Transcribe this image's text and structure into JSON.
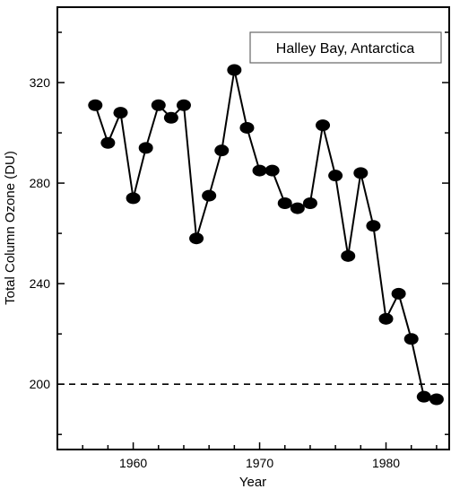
{
  "chart_data": {
    "type": "line",
    "title": "",
    "xlabel": "Year",
    "ylabel": "Total Column Ozone (DU)",
    "xlim": [
      1954,
      1985
    ],
    "ylim": [
      174,
      350
    ],
    "xticks": [
      1960,
      1970,
      1980
    ],
    "yticks": [
      200,
      240,
      280,
      320
    ],
    "annotation": "Halley Bay, Antarctica",
    "reference_line": {
      "y": 200,
      "style": "dashed"
    },
    "grid": false,
    "series": [
      {
        "x": [
          1957,
          1958,
          1959,
          1960,
          1961,
          1962,
          1963,
          1964,
          1965,
          1966,
          1967,
          1968,
          1969,
          1970,
          1971,
          1972,
          1973,
          1974,
          1975,
          1976,
          1977,
          1978,
          1979,
          1980,
          1981,
          1982,
          1983,
          1984
        ],
        "y": [
          311,
          296,
          308,
          274,
          294,
          311,
          306,
          311,
          258,
          275,
          293,
          325,
          302,
          285,
          285,
          272,
          270,
          272,
          303,
          283,
          251,
          284,
          263,
          226,
          236,
          218,
          195,
          194
        ]
      }
    ]
  }
}
